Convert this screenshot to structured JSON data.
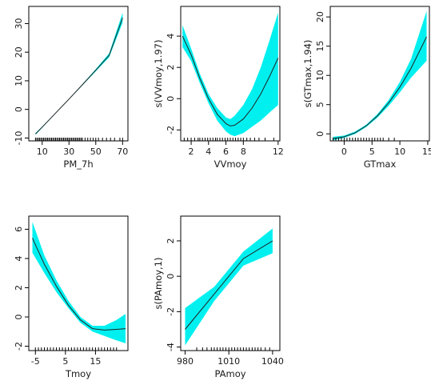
{
  "colors": {
    "band": "#00f0f0",
    "line": "#222222",
    "frame": "#000000",
    "rug": "#000000"
  },
  "chart_data": [
    {
      "type": "line",
      "xlabel": "PM_7h",
      "ylabel": "",
      "xlim": [
        0,
        74
      ],
      "ylim": [
        -11,
        36
      ],
      "xticks": [
        10,
        30,
        50,
        70
      ],
      "yticks": [
        -10,
        0,
        10,
        20,
        30
      ],
      "x": [
        5,
        10,
        20,
        30,
        40,
        50,
        60,
        70
      ],
      "fit": [
        -8.6,
        -6.2,
        -1.3,
        3.6,
        8.6,
        13.7,
        18.9,
        32.0
      ],
      "lower": [
        -8.9,
        -6.4,
        -1.4,
        3.5,
        8.4,
        13.3,
        18.2,
        30.3
      ],
      "upper": [
        -8.3,
        -6.0,
        -1.2,
        3.7,
        8.8,
        14.1,
        19.6,
        33.8
      ],
      "rug": [
        5,
        6,
        7,
        8,
        9,
        10,
        11,
        12,
        13,
        14,
        15,
        16,
        17,
        18,
        19,
        20,
        21,
        22,
        23,
        24,
        25,
        26,
        27,
        28,
        29,
        30,
        31,
        32,
        33,
        34,
        35,
        36,
        37,
        38,
        39,
        40,
        42,
        44,
        46,
        48,
        50,
        52,
        55,
        58,
        61,
        64,
        68,
        70
      ]
    },
    {
      "type": "line",
      "xlabel": "VVmoy",
      "ylabel": "s(VVmoy,1.97)",
      "xlim": [
        0.8,
        12.2
      ],
      "ylim": [
        -2.7,
        5.9
      ],
      "xticks": [
        2,
        4,
        6,
        8,
        12
      ],
      "yticks": [
        -2,
        0,
        2,
        4
      ],
      "x": [
        1,
        2,
        3,
        4,
        5,
        6,
        6.5,
        7,
        8,
        9,
        10,
        11,
        12
      ],
      "fit": [
        4.0,
        2.8,
        1.3,
        0.0,
        -1.0,
        -1.6,
        -1.75,
        -1.7,
        -1.3,
        -0.6,
        0.3,
        1.4,
        2.6
      ],
      "lower": [
        3.3,
        2.4,
        1.0,
        -0.3,
        -1.4,
        -2.1,
        -2.3,
        -2.4,
        -2.2,
        -1.8,
        -1.4,
        -0.9,
        -0.4
      ],
      "upper": [
        4.7,
        3.2,
        1.6,
        0.3,
        -0.6,
        -1.2,
        -1.3,
        -1.1,
        -0.4,
        0.6,
        2.0,
        3.7,
        5.5
      ],
      "rug": [
        1.2,
        1.6,
        2.0,
        2.4,
        2.8,
        3.0,
        3.3,
        3.6,
        3.9,
        4.2,
        4.5,
        4.8,
        5.0,
        5.3,
        5.6,
        5.9,
        6.2,
        6.5,
        6.8,
        7.1,
        7.4,
        7.7,
        8.0,
        8.4,
        8.8,
        9.3,
        9.8,
        10.5,
        11.5
      ]
    },
    {
      "type": "line",
      "xlabel": "GTmax",
      "ylabel": "s(GTmax,1.94)",
      "xlim": [
        -2.5,
        15.3
      ],
      "ylim": [
        -1.2,
        21.8
      ],
      "xticks": [
        0,
        5,
        10,
        15
      ],
      "yticks": [
        0,
        5,
        10,
        15,
        20
      ],
      "x": [
        -2,
        0,
        2,
        4,
        6,
        8,
        10,
        12,
        14.8
      ],
      "fit": [
        -0.8,
        -0.5,
        0.2,
        1.4,
        3.1,
        5.3,
        8.0,
        11.2,
        16.6
      ],
      "lower": [
        -1.1,
        -0.7,
        0.0,
        1.2,
        2.8,
        4.8,
        7.1,
        9.6,
        12.5
      ],
      "upper": [
        -0.5,
        -0.3,
        0.4,
        1.6,
        3.4,
        5.8,
        8.9,
        12.8,
        21.0
      ],
      "rug": [
        -2,
        -1.5,
        -1,
        -0.5,
        0,
        0.5,
        1,
        1.5,
        2,
        2.5,
        3,
        3.5,
        4,
        4.5,
        5,
        5.5,
        6,
        6.5,
        7,
        8,
        9
      ]
    },
    {
      "type": "line",
      "xlabel": "Tmoy",
      "ylabel": "",
      "xlim": [
        -7.2,
        25.8
      ],
      "ylim": [
        -2.3,
        6.9
      ],
      "xticks": [
        -5,
        5,
        15
      ],
      "yticks": [
        -2,
        0,
        2,
        4,
        6
      ],
      "x": [
        -6,
        -2,
        2,
        6,
        10,
        14,
        18,
        22,
        25
      ],
      "fit": [
        5.4,
        3.6,
        2.1,
        0.8,
        -0.2,
        -0.8,
        -0.9,
        -0.85,
        -0.8
      ],
      "lower": [
        4.4,
        3.0,
        1.7,
        0.6,
        -0.4,
        -1.0,
        -1.3,
        -1.6,
        -1.8
      ],
      "upper": [
        6.5,
        4.2,
        2.5,
        1.1,
        0.0,
        -0.6,
        -0.6,
        -0.2,
        0.2
      ],
      "rug": [
        -5,
        -4,
        -3,
        -2,
        -1,
        0,
        1,
        2,
        3,
        4,
        5,
        6,
        7,
        8,
        9,
        10,
        11,
        12,
        13,
        14,
        15,
        16,
        17,
        18,
        19,
        20,
        21,
        22
      ]
    },
    {
      "type": "line",
      "xlabel": "PAmoy",
      "ylabel": "s(PAmoy,1)",
      "xlim": [
        977,
        1045
      ],
      "ylim": [
        -4.2,
        3.4
      ],
      "xticks": [
        980,
        1010,
        1040
      ],
      "yticks": [
        -4,
        -2,
        0,
        2
      ],
      "x": [
        980,
        1000,
        1020,
        1040
      ],
      "fit": [
        -3.0,
        -1.0,
        1.0,
        2.0
      ],
      "lower": [
        -3.9,
        -1.4,
        0.6,
        1.3
      ],
      "upper": [
        -1.8,
        -0.6,
        1.4,
        2.7
      ],
      "rug": [
        988,
        992,
        995,
        998,
        1000,
        1002,
        1004,
        1006,
        1008,
        1010,
        1012,
        1014,
        1016,
        1018,
        1020,
        1022,
        1024,
        1026,
        1028,
        1030,
        1032,
        1035,
        1038
      ]
    }
  ]
}
